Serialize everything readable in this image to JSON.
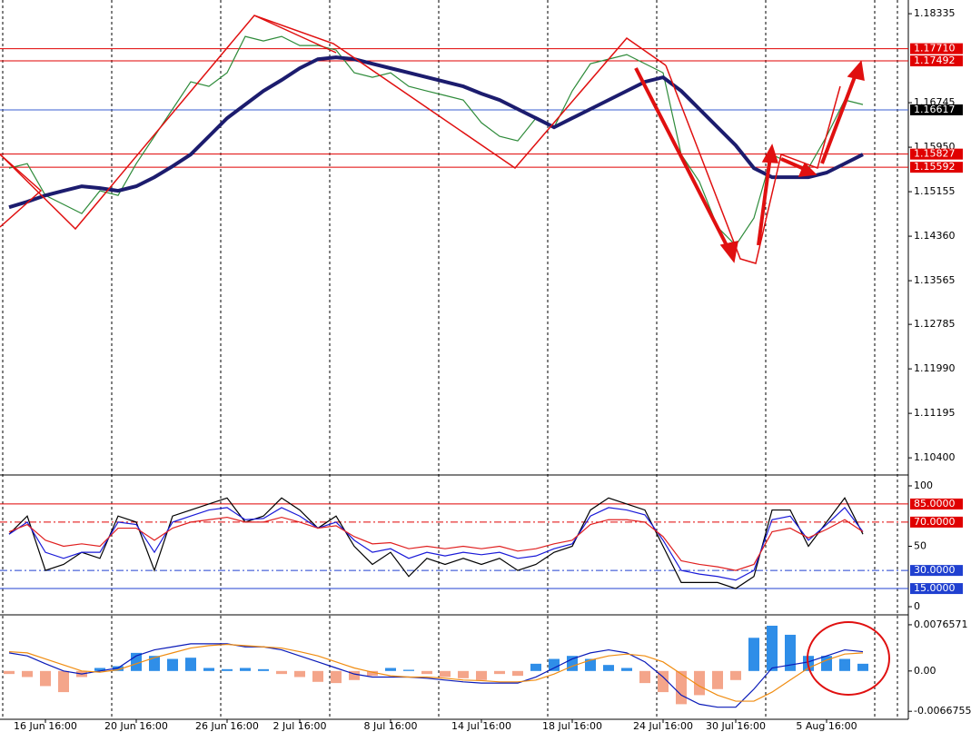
{
  "chart_data": [
    {
      "type": "line",
      "ylim": [
        1.1011,
        1.1858
      ],
      "yticks": [
        1.18335,
        1.16745,
        {
          "value": 1.1595,
          "label": "1.15950"
        },
        1.15155,
        {
          "value": 1.1436,
          "label": "1.14360"
        },
        1.13565,
        1.12785,
        {
          "value": 1.1199,
          "label": "1.11990"
        },
        1.11195,
        {
          "value": 1.104,
          "label": "1.10400"
        }
      ],
      "levels": [
        {
          "value": 1.1771,
          "label": "1.17710",
          "color": "#e00000",
          "label_color": "#e00000"
        },
        {
          "value": 1.17492,
          "label": "1.17492",
          "color": "#e00000",
          "label_color": "#e00000"
        },
        {
          "value": 1.16617,
          "label": "1.16617",
          "color": "#3a5fd0",
          "label_color": "#000000"
        },
        {
          "value": 1.15827,
          "label": "1.15827",
          "color": "#e00000",
          "label_color": "#e00000"
        },
        {
          "value": 1.15592,
          "label": "1.15592",
          "color": "#e00000",
          "label_color": "#e00000"
        }
      ],
      "series": [
        {
          "color": "#2e8b3a",
          "values": [
            1.15576,
            1.15657,
            1.15089,
            1.14927,
            1.14765,
            1.15171,
            1.15089,
            1.15657,
            1.16144,
            1.16631,
            1.17118,
            1.17037,
            1.1728,
            1.17929,
            1.17848,
            1.17929,
            1.17767,
            1.17767,
            1.17686,
            1.1728,
            1.17199,
            1.1728,
            1.17037,
            1.16955,
            1.16874,
            1.16793,
            1.16387,
            1.16144,
            1.16063,
            1.16469,
            1.16306,
            1.16955,
            1.17442,
            1.17523,
            1.17604,
            1.17442,
            1.1728,
            1.1582,
            1.15333,
            1.14521,
            1.14197,
            1.14684,
            1.1582,
            1.15657,
            1.15576,
            1.16144,
            1.16793,
            1.16712,
            null,
            null
          ]
        },
        {
          "color": "#1c1c6e",
          "values": [
            1.14878,
            1.14976,
            1.15089,
            1.15171,
            1.15252,
            1.15219,
            1.15171,
            1.15252,
            1.15414,
            1.15609,
            1.1582,
            1.16144,
            1.16469,
            1.16712,
            1.16955,
            1.1715,
            1.17361,
            1.17523,
            1.17556,
            1.17523,
            1.17442,
            1.17361,
            1.1728,
            1.17199,
            1.17118,
            1.17037,
            1.16907,
            1.16793,
            1.16631,
            1.16469,
            1.16306,
            1.16469,
            1.16631,
            1.16793,
            1.16955,
            1.17118,
            1.17199,
            1.16955,
            1.16631,
            1.16306,
            1.15982,
            1.15576,
            1.15414,
            1.15414,
            1.15414,
            1.15495,
            1.15657,
            1.1582,
            null,
            null
          ]
        }
      ]
    },
    {
      "type": "line",
      "ylim": [
        -6,
        107.5
      ],
      "yticks": [
        0,
        50,
        100
      ],
      "levels": [
        {
          "value": 85,
          "label": "85.0000",
          "color": "#e00000",
          "label_color": "#e00000",
          "style": "solid"
        },
        {
          "value": 70,
          "label": "70.0000",
          "color": "#e00000",
          "label_color": "#e00000",
          "style": "dashdot"
        },
        {
          "value": 30,
          "label": "30.0000",
          "color": "#2040d0",
          "label_color": "#2040d0",
          "style": "dashdot"
        },
        {
          "value": 15,
          "label": "15.0000",
          "color": "#2040d0",
          "label_color": "#2040d0",
          "style": "solid"
        }
      ],
      "series": [
        {
          "color": "#000000",
          "values": [
            60,
            75,
            30,
            35,
            45,
            40,
            75,
            70,
            30,
            75,
            80,
            85,
            90,
            70,
            75,
            90,
            80,
            65,
            75,
            50,
            35,
            45,
            25,
            40,
            35,
            40,
            35,
            40,
            30,
            35,
            45,
            50,
            80,
            90,
            85,
            80,
            50,
            20,
            20,
            20,
            15,
            25,
            80,
            80,
            50,
            70,
            90,
            60,
            null,
            null
          ]
        },
        {
          "color": "#1a1ad8",
          "values": [
            60,
            70,
            45,
            40,
            45,
            45,
            70,
            68,
            45,
            70,
            75,
            80,
            82,
            72,
            73,
            82,
            75,
            65,
            70,
            55,
            45,
            48,
            40,
            45,
            42,
            45,
            43,
            45,
            40,
            42,
            48,
            52,
            75,
            82,
            80,
            76,
            55,
            30,
            27,
            25,
            22,
            30,
            72,
            75,
            55,
            68,
            82,
            62,
            null,
            null
          ]
        },
        {
          "color": "#e02020",
          "values": [
            62,
            68,
            55,
            50,
            52,
            50,
            65,
            65,
            55,
            65,
            70,
            72,
            74,
            70,
            70,
            74,
            70,
            65,
            67,
            58,
            52,
            53,
            48,
            50,
            48,
            50,
            48,
            50,
            46,
            48,
            52,
            55,
            68,
            72,
            72,
            70,
            58,
            38,
            35,
            33,
            30,
            35,
            62,
            65,
            57,
            64,
            72,
            62,
            null,
            null
          ]
        }
      ]
    },
    {
      "type": "bar",
      "ylim": [
        -0.008,
        0.009
      ],
      "yticks": [
        0.0076571,
        {
          "value": 0,
          "label": "0.00"
        },
        -0.0066755
      ],
      "color": "#2f8ee8",
      "negative_color": "#f4a58a",
      "categories": [
        null,
        null,
        "16 Jun 16:00",
        null,
        null,
        null,
        null,
        "20 Jun 16:00",
        null,
        null,
        null,
        null,
        "26 Jun 16:00",
        null,
        null,
        null,
        "2 Jul 16:00",
        null,
        null,
        null,
        null,
        "8 Jul 16:00",
        null,
        null,
        null,
        null,
        "14 Jul 16:00",
        null,
        null,
        null,
        null,
        "18 Jul 16:00",
        null,
        null,
        null,
        null,
        "24 Jul 16:00",
        null,
        null,
        null,
        "30 Jul 16:00",
        null,
        null,
        null,
        null,
        "5 Aug 16:00",
        null,
        null,
        null,
        null
      ],
      "values": [
        -0.0005,
        -0.001,
        -0.0025,
        -0.0035,
        -0.001,
        0.0005,
        0.0008,
        0.003,
        0.0025,
        0.002,
        0.0022,
        0.0005,
        0.0003,
        0.0005,
        0.0003,
        -0.0005,
        -0.001,
        -0.0018,
        -0.002,
        -0.0015,
        -0.0008,
        0.0005,
        0.0002,
        -0.0005,
        -0.001,
        -0.0012,
        -0.0015,
        -0.0005,
        -0.0008,
        0.0012,
        0.002,
        0.0025,
        0.002,
        0.001,
        0.0005,
        -0.002,
        -0.0035,
        -0.0055,
        -0.004,
        -0.003,
        -0.0015,
        0.0055,
        0.0075,
        0.006,
        0.0025,
        0.0025,
        0.002,
        0.0012,
        null,
        null
      ],
      "series": [
        {
          "color": "#0a1ab8",
          "values": [
            0.003,
            0.0025,
            0.0012,
            0,
            -0.0005,
            0,
            0.0005,
            0.0025,
            0.0035,
            0.004,
            0.0045,
            0.0045,
            0.0045,
            0.004,
            0.004,
            0.0035,
            0.0025,
            0.0015,
            0.0005,
            -0.0005,
            -0.001,
            -0.001,
            -0.001,
            -0.0012,
            -0.0015,
            -0.0018,
            -0.002,
            -0.002,
            -0.002,
            -0.001,
            0.0005,
            0.002,
            0.003,
            0.0035,
            0.003,
            0.0015,
            -0.001,
            -0.004,
            -0.0055,
            -0.006,
            -0.006,
            -0.003,
            0.0005,
            0.001,
            0.0015,
            0.0025,
            0.0035,
            0.0032,
            null,
            null
          ]
        },
        {
          "color": "#f08c10",
          "values": [
            0.0032,
            0.003,
            0.002,
            0.001,
            0,
            -0.0002,
            0.0002,
            0.0012,
            0.0022,
            0.003,
            0.0038,
            0.0042,
            0.0044,
            0.0042,
            0.004,
            0.0038,
            0.0032,
            0.0025,
            0.0015,
            0.0005,
            -0.0002,
            -0.0008,
            -0.001,
            -0.001,
            -0.0012,
            -0.0015,
            -0.0016,
            -0.0018,
            -0.0018,
            -0.0015,
            -0.0005,
            0.0008,
            0.0018,
            0.0025,
            0.0028,
            0.0025,
            0.0015,
            -0.0005,
            -0.0025,
            -0.004,
            -0.005,
            -0.005,
            -0.0035,
            -0.0015,
            0.0005,
            0.0018,
            0.0028,
            0.003,
            null,
            null
          ]
        }
      ]
    }
  ]
}
